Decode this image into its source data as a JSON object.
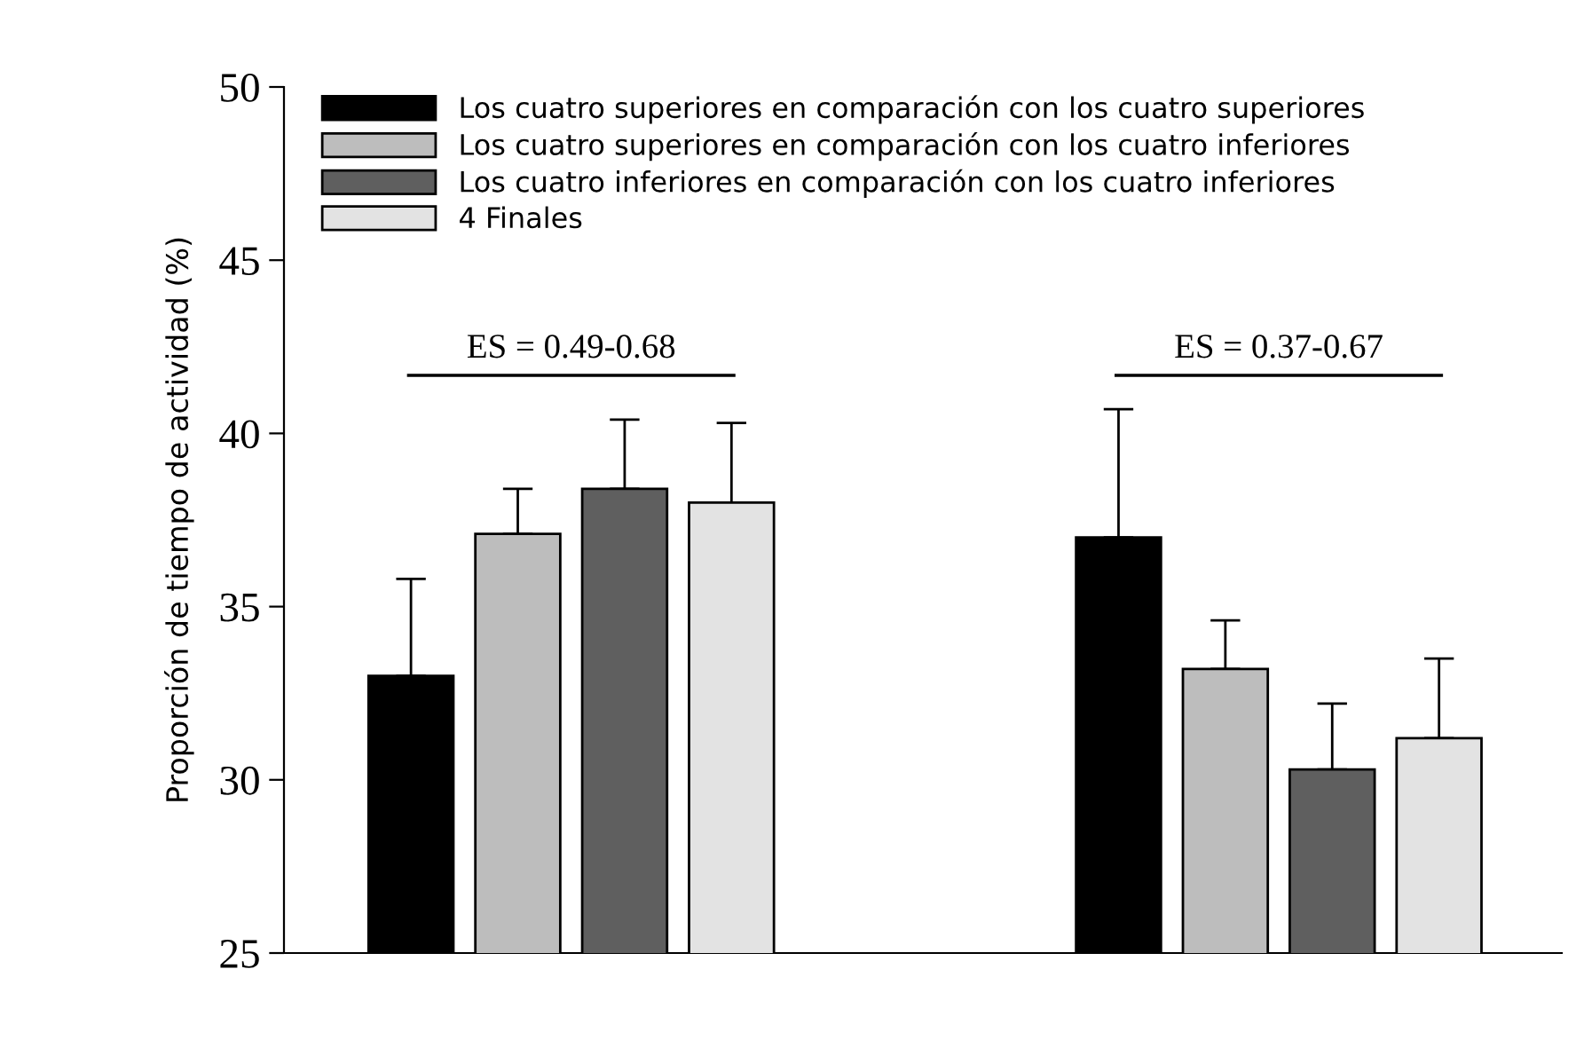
{
  "chart_data": {
    "type": "bar",
    "ylabel": "Proporción de tiempo de actividad (%)",
    "categories": [
      null,
      null
    ],
    "series": [
      {
        "name": "Los cuatro superiores en comparación con los cuatro superiores",
        "color": "#000000",
        "values": [
          33.0,
          37.0
        ],
        "errors": [
          [
            33.0,
            35.8
          ],
          [
            37.0,
            40.7
          ]
        ]
      },
      {
        "name": "Los cuatro superiores en comparación con los cuatro inferiores",
        "color": "#bdbdbd",
        "values": [
          37.1,
          33.2
        ],
        "errors": [
          [
            37.1,
            38.4
          ],
          [
            33.2,
            34.6
          ]
        ]
      },
      {
        "name": "Los cuatro inferiores en comparación con los cuatro inferiores",
        "color": "#5f5f5f",
        "values": [
          38.4,
          30.3
        ],
        "errors": [
          [
            38.4,
            40.4
          ],
          [
            30.3,
            32.2
          ]
        ]
      },
      {
        "name": "4 Finales",
        "color": "#e3e3e3",
        "values": [
          38.0,
          31.2
        ],
        "errors": [
          [
            38.0,
            40.3
          ],
          [
            31.2,
            33.5
          ]
        ]
      }
    ],
    "annotations": [
      "ES = 0.49-0.68",
      "ES = 0.37-0.67"
    ],
    "ylim": [
      25,
      50
    ],
    "yticks": [
      25,
      30,
      35,
      40,
      45,
      50
    ],
    "grid": false,
    "legend": "top left",
    "tick_labels": "y"
  }
}
